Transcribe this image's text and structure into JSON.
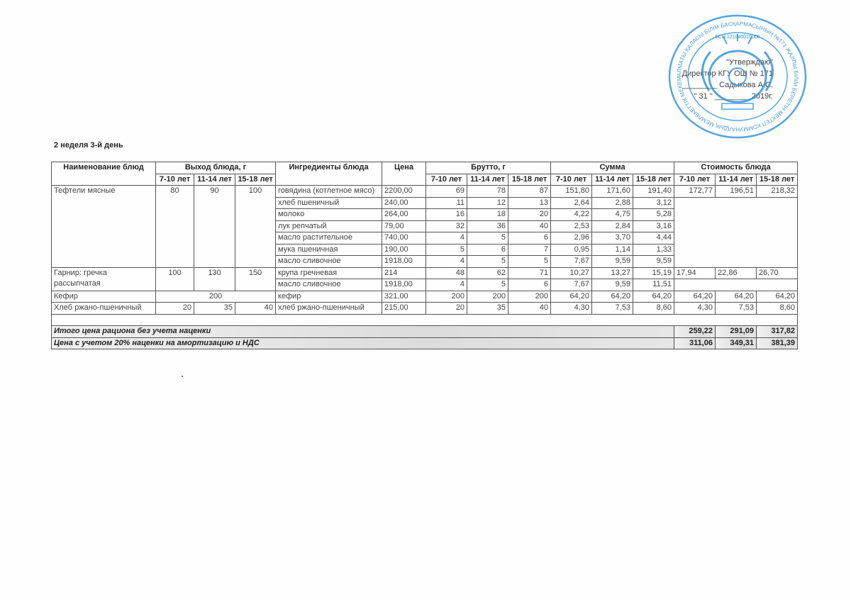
{
  "approval": {
    "line1": "\"Утверждаю\"",
    "line2": "Директор КГУ ОШ № 171",
    "line3": "________ Садыкова А.С.",
    "line4": "\" 31 \" ________ 2019г."
  },
  "stamp": {
    "text": "АЛМАТЫ ҚАЛАСЫ БІЛІМ БАСҚАРМАСЫНЫҢ №171 ЖАЛПЫ БІЛІМ БЕРЕТІН МЕКТЕП КОММУНАЛДЫҚ МЕМЛЕКЕТТІК МЕКЕМЕСІ",
    "bin": "БСН 121040010068",
    "emblem": "KAZAKSTAN",
    "color": "#2a8fd8"
  },
  "heading": "2 неделя 3-й день",
  "table": {
    "headers": {
      "name": "Наименование блюд",
      "yield": "Выход блюда, г",
      "ingredients": "Ингредиенты блюда",
      "price": "Цена",
      "brutto": "Брутто, г",
      "sum": "Сумма",
      "cost": "Стоимость блюда",
      "ages": [
        "7-10 лет",
        "11-14 лет",
        "15-18 лет"
      ]
    },
    "dishes": [
      {
        "name": "Тефтели мясные",
        "yield": [
          "80",
          "90",
          "100"
        ],
        "cost": [
          "172,77",
          "196,51",
          "218,32"
        ],
        "ingredients": [
          {
            "name": "говядина (котлетное мясо)",
            "price": "2200,00",
            "brutto": [
              "69",
              "78",
              "87"
            ],
            "sum": [
              "151,80",
              "171,60",
              "191,40"
            ]
          },
          {
            "name": "хлеб пшеничный",
            "price": "240,00",
            "brutto": [
              "11",
              "12",
              "13"
            ],
            "sum": [
              "2,64",
              "2,88",
              "3,12"
            ]
          },
          {
            "name": "молоко",
            "price": "264,00",
            "brutto": [
              "16",
              "18",
              "20"
            ],
            "sum": [
              "4,22",
              "4,75",
              "5,28"
            ]
          },
          {
            "name": "лук репчатый",
            "price": "79,00",
            "brutto": [
              "32",
              "36",
              "40"
            ],
            "sum": [
              "2,53",
              "2,84",
              "3,16"
            ]
          },
          {
            "name": "масло растительное",
            "price": "740,00",
            "brutto": [
              "4",
              "5",
              "6"
            ],
            "sum": [
              "2,96",
              "3,70",
              "4,44"
            ]
          },
          {
            "name": "мука пшеничная",
            "price": "190,00",
            "brutto": [
              "5",
              "6",
              "7"
            ],
            "sum": [
              "0,95",
              "1,14",
              "1,33"
            ]
          },
          {
            "name": "масло сливочное",
            "price": "1918,00",
            "brutto": [
              "4",
              "5",
              "5"
            ],
            "sum": [
              "7,67",
              "9,59",
              "9,59"
            ]
          }
        ]
      },
      {
        "name": "Гарнир: гречка рассыпчатая",
        "yield": [
          "100",
          "130",
          "150"
        ],
        "cost": [
          "17,94",
          "22,86",
          "26,70"
        ],
        "ingredients": [
          {
            "name": "крупа гречневая",
            "price": "214",
            "brutto": [
              "48",
              "62",
              "71"
            ],
            "sum": [
              "10,27",
              "13,27",
              "15,19"
            ]
          },
          {
            "name": "масло сливочное",
            "price": "1918,00",
            "brutto": [
              "4",
              "5",
              "6"
            ],
            "sum": [
              "7,67",
              "9,59",
              "11,51"
            ]
          }
        ]
      },
      {
        "name": "Кефир",
        "yield_common": "200",
        "cost": [
          "64,20",
          "64,20",
          "64,20"
        ],
        "ingredients": [
          {
            "name": "кефир",
            "price": "321,00",
            "brutto": [
              "200",
              "200",
              "200"
            ],
            "sum": [
              "64,20",
              "64,20",
              "64,20"
            ]
          }
        ]
      },
      {
        "name": "Хлеб ржано-пшеничный",
        "yield": [
          "20",
          "35",
          "40"
        ],
        "cost": [
          "4,30",
          "7,53",
          "8,60"
        ],
        "ingredients": [
          {
            "name": "хлеб ржано-пшеничный",
            "price": "215,00",
            "brutto": [
              "20",
              "35",
              "40"
            ],
            "sum": [
              "4,30",
              "7,53",
              "8,60"
            ]
          }
        ]
      }
    ],
    "totals": [
      {
        "label": "Итого цена рациона без учета наценки",
        "values": [
          "259,22",
          "291,09",
          "317,82"
        ]
      },
      {
        "label": "Цена с учетом 20% наценки на амортизацию и НДС",
        "values": [
          "311,06",
          "349,31",
          "381,39"
        ]
      }
    ]
  }
}
